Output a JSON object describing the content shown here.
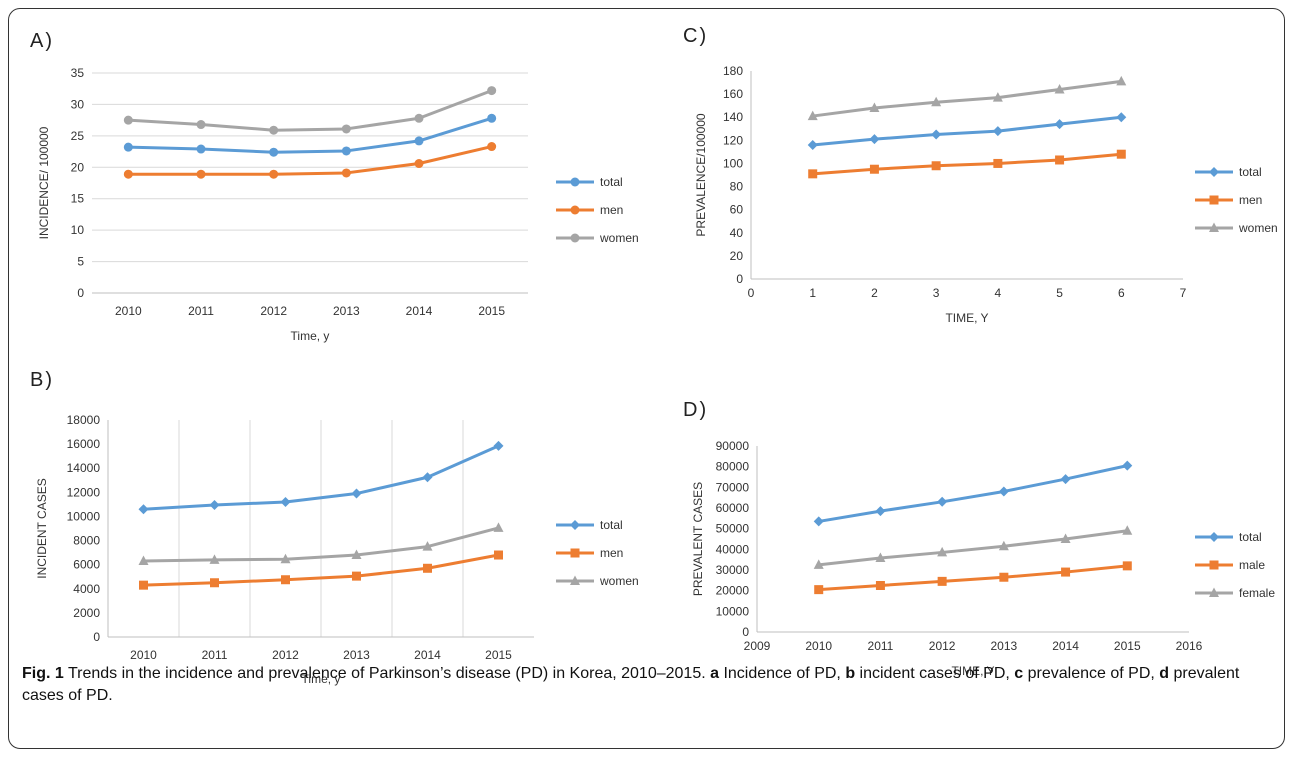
{
  "caption": {
    "label": "Fig. 1",
    "text_1": " Trends in the incidence and prevalence of Parkinson’s disease (PD) in Korea, 2010–2015. ",
    "a": "a",
    "text_a": " Incidence of PD, ",
    "b": "b",
    "text_b": " incident cases of PD, ",
    "c": "c",
    "text_c": " prevalence of PD, ",
    "d": "d",
    "text_d": " prevalent cases of PD."
  },
  "colors": {
    "total": "#5b9bd5",
    "men": "#ed7d31",
    "women": "#a5a5a5",
    "grid": "#d9d9d9"
  },
  "chart_data": [
    {
      "panel": "A)",
      "type": "line",
      "marker": "circle",
      "xlabel": "Time, y",
      "ylabel": "INCIDENCE/ 100000",
      "categories": [
        "2010",
        "2011",
        "2012",
        "2013",
        "2014",
        "2015"
      ],
      "ylim": [
        0,
        35
      ],
      "yticks": [
        0,
        5,
        10,
        15,
        20,
        25,
        30,
        35
      ],
      "grid": "horizontal",
      "legend": "right",
      "series": [
        {
          "name": "total",
          "color_key": "total",
          "values": [
            23.2,
            22.9,
            22.4,
            22.6,
            24.2,
            27.8
          ]
        },
        {
          "name": "men",
          "color_key": "men",
          "values": [
            18.9,
            18.9,
            18.9,
            19.1,
            20.6,
            23.3
          ]
        },
        {
          "name": "women",
          "color_key": "women",
          "values": [
            27.5,
            26.8,
            25.9,
            26.1,
            27.8,
            32.2
          ]
        }
      ]
    },
    {
      "panel": "B)",
      "type": "line",
      "marker": "mixed",
      "xlabel": "Time, y",
      "ylabel": "INCIDENT CASES",
      "categories": [
        "2010",
        "2011",
        "2012",
        "2013",
        "2014",
        "2015"
      ],
      "ylim": [
        0,
        18000
      ],
      "yticks": [
        0,
        2000,
        4000,
        6000,
        8000,
        10000,
        12000,
        14000,
        16000,
        18000
      ],
      "grid": "vertical",
      "legend": "right",
      "series": [
        {
          "name": "total",
          "color_key": "total",
          "marker": "diamond",
          "values": [
            10600,
            10950,
            11200,
            11900,
            13250,
            15850
          ]
        },
        {
          "name": "men",
          "color_key": "men",
          "marker": "square",
          "values": [
            4300,
            4500,
            4750,
            5050,
            5700,
            6800
          ]
        },
        {
          "name": "women",
          "color_key": "women",
          "marker": "triangle",
          "values": [
            6300,
            6400,
            6450,
            6800,
            7500,
            9050
          ]
        }
      ]
    },
    {
      "panel": "C)",
      "type": "scatter",
      "marker": "mixed",
      "xlabel": "TIME, Y",
      "ylabel": "PREVALENCE/100000",
      "x": [
        1,
        2,
        3,
        4,
        5,
        6
      ],
      "xlim": [
        0,
        7
      ],
      "xticks": [
        0,
        1,
        2,
        3,
        4,
        5,
        6,
        7
      ],
      "ylim": [
        0,
        180
      ],
      "yticks": [
        0,
        20,
        40,
        60,
        80,
        100,
        120,
        140,
        160,
        180
      ],
      "grid": "none",
      "legend": "right",
      "series": [
        {
          "name": "total",
          "color_key": "total",
          "marker": "diamond",
          "values": [
            116,
            121,
            125,
            128,
            134,
            140
          ]
        },
        {
          "name": "men",
          "color_key": "men",
          "marker": "square",
          "values": [
            91,
            95,
            98,
            100,
            103,
            108
          ]
        },
        {
          "name": "women",
          "color_key": "women",
          "marker": "triangle",
          "values": [
            141,
            148,
            153,
            157,
            164,
            171
          ]
        }
      ]
    },
    {
      "panel": "D)",
      "type": "scatter",
      "marker": "mixed",
      "xlabel": "TIME, Y",
      "ylabel": "PREVALENT CASES",
      "x": [
        2010,
        2011,
        2012,
        2013,
        2014,
        2015
      ],
      "xlim": [
        2009,
        2016
      ],
      "xticks": [
        2009,
        2010,
        2011,
        2012,
        2013,
        2014,
        2015,
        2016
      ],
      "ylim": [
        0,
        90000
      ],
      "yticks": [
        0,
        10000,
        20000,
        30000,
        40000,
        50000,
        60000,
        70000,
        80000,
        90000
      ],
      "grid": "none",
      "legend": "right",
      "series": [
        {
          "name": "total",
          "color_key": "total",
          "marker": "diamond",
          "values": [
            53500,
            58500,
            63000,
            68000,
            74000,
            80500
          ]
        },
        {
          "name": "male",
          "color_key": "men",
          "marker": "square",
          "values": [
            20500,
            22500,
            24500,
            26500,
            29000,
            32000
          ]
        },
        {
          "name": "female",
          "color_key": "women",
          "marker": "triangle",
          "values": [
            32500,
            35800,
            38500,
            41500,
            45000,
            49000
          ]
        }
      ]
    }
  ]
}
